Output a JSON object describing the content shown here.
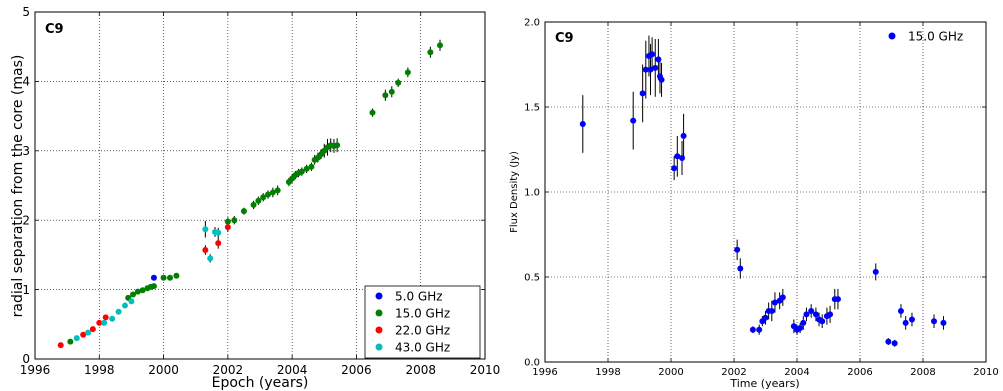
{
  "chart_data": [
    {
      "type": "scatter",
      "panel_label": "C9",
      "xlabel": "Epoch (years)",
      "ylabel": "radial separation from the core (mas)",
      "xlim": [
        1996,
        2010
      ],
      "ylim": [
        0,
        5
      ],
      "xticks": [
        "1996",
        "1998",
        "2000",
        "2002",
        "2004",
        "2006",
        "2008",
        "2010"
      ],
      "yticks": [
        "0",
        "1",
        "2",
        "3",
        "4",
        "5"
      ],
      "grid": true,
      "legend_position": "bottom-right",
      "series": [
        {
          "name": "5.0 GHz",
          "color": "#0000ff",
          "points": [
            [
              1999.7,
              1.17,
              0.02
            ]
          ]
        },
        {
          "name": "15.0 GHz",
          "color": "#007f00",
          "points": [
            [
              1997.1,
              0.25,
              0.02
            ],
            [
              1998.9,
              0.88,
              0.03
            ],
            [
              1999.05,
              0.93,
              0.03
            ],
            [
              1999.2,
              0.97,
              0.03
            ],
            [
              1999.35,
              0.99,
              0.03
            ],
            [
              1999.5,
              1.02,
              0.03
            ],
            [
              1999.6,
              1.04,
              0.03
            ],
            [
              1999.7,
              1.05,
              0.03
            ],
            [
              2000.0,
              1.17,
              0.03
            ],
            [
              2000.2,
              1.17,
              0.03
            ],
            [
              2000.4,
              1.2,
              0.04
            ],
            [
              2002.0,
              1.98,
              0.06
            ],
            [
              2002.2,
              2.0,
              0.06
            ],
            [
              2002.5,
              2.13,
              0.05
            ],
            [
              2002.8,
              2.22,
              0.06
            ],
            [
              2002.95,
              2.28,
              0.06
            ],
            [
              2003.1,
              2.33,
              0.06
            ],
            [
              2003.25,
              2.37,
              0.06
            ],
            [
              2003.4,
              2.4,
              0.07
            ],
            [
              2003.55,
              2.43,
              0.07
            ],
            [
              2003.9,
              2.55,
              0.06
            ],
            [
              2004.0,
              2.6,
              0.06
            ],
            [
              2004.1,
              2.65,
              0.06
            ],
            [
              2004.2,
              2.68,
              0.06
            ],
            [
              2004.3,
              2.7,
              0.06
            ],
            [
              2004.45,
              2.74,
              0.06
            ],
            [
              2004.6,
              2.77,
              0.06
            ],
            [
              2004.7,
              2.87,
              0.07
            ],
            [
              2004.8,
              2.9,
              0.07
            ],
            [
              2004.9,
              2.95,
              0.07
            ],
            [
              2005.0,
              3.0,
              0.1
            ],
            [
              2005.1,
              3.05,
              0.12
            ],
            [
              2005.2,
              3.08,
              0.1
            ],
            [
              2005.3,
              3.07,
              0.1
            ],
            [
              2005.4,
              3.08,
              0.1
            ],
            [
              2006.5,
              3.55,
              0.06
            ],
            [
              2006.9,
              3.8,
              0.08
            ],
            [
              2007.1,
              3.85,
              0.08
            ],
            [
              2007.3,
              3.98,
              0.06
            ],
            [
              2007.6,
              4.13,
              0.07
            ],
            [
              2008.3,
              4.42,
              0.08
            ],
            [
              2008.6,
              4.52,
              0.08
            ]
          ]
        },
        {
          "name": "22.0 GHz",
          "color": "#ff0000",
          "points": [
            [
              1996.8,
              0.2,
              0.02
            ],
            [
              1997.5,
              0.35,
              0.02
            ],
            [
              1997.8,
              0.43,
              0.02
            ],
            [
              1998.0,
              0.52,
              0.02
            ],
            [
              1998.2,
              0.6,
              0.02
            ],
            [
              2001.3,
              1.57,
              0.07
            ],
            [
              2001.7,
              1.67,
              0.08
            ],
            [
              2002.0,
              1.9,
              0.07
            ]
          ]
        },
        {
          "name": "43.0 GHz",
          "color": "#00bfbf",
          "points": [
            [
              1997.3,
              0.3,
              0.02
            ],
            [
              1997.65,
              0.38,
              0.02
            ],
            [
              1998.15,
              0.52,
              0.02
            ],
            [
              1998.4,
              0.58,
              0.02
            ],
            [
              1998.6,
              0.68,
              0.02
            ],
            [
              1998.8,
              0.77,
              0.02
            ],
            [
              1999.0,
              0.83,
              0.02
            ],
            [
              2001.3,
              1.87,
              0.12
            ],
            [
              2001.45,
              1.45,
              0.06
            ],
            [
              2001.6,
              1.83,
              0.07
            ],
            [
              2001.7,
              1.82,
              0.07
            ]
          ]
        }
      ]
    },
    {
      "type": "scatter",
      "panel_label": "C9",
      "xlabel": "Time (years)",
      "ylabel": "Flux Density (Jy)",
      "xlim": [
        1996,
        2010
      ],
      "ylim": [
        0,
        2
      ],
      "xticks": [
        "1996",
        "1998",
        "2000",
        "2002",
        "2004",
        "2006",
        "2008",
        "2010"
      ],
      "yticks": [
        "0.0",
        "0.5",
        "1.0",
        "1.5",
        "2.0"
      ],
      "grid": true,
      "legend_position": "top-right",
      "series": [
        {
          "name": "15.0 GHz",
          "color": "#0000ff",
          "points": [
            [
              1997.2,
              1.4,
              0.17
            ],
            [
              1998.8,
              1.42,
              0.17
            ],
            [
              1999.1,
              1.58,
              0.17
            ],
            [
              1999.2,
              1.72,
              0.17
            ],
            [
              1999.3,
              1.8,
              0.12
            ],
            [
              1999.35,
              1.72,
              0.15
            ],
            [
              1999.4,
              1.81,
              0.1
            ],
            [
              1999.5,
              1.73,
              0.17
            ],
            [
              1999.6,
              1.78,
              0.12
            ],
            [
              1999.65,
              1.68,
              0.1
            ],
            [
              1999.7,
              1.66,
              0.1
            ],
            [
              2000.1,
              1.14,
              0.07
            ],
            [
              2000.2,
              1.21,
              0.12
            ],
            [
              2000.35,
              1.2,
              0.1
            ],
            [
              2000.4,
              1.33,
              0.13
            ],
            [
              2002.1,
              0.66,
              0.06
            ],
            [
              2002.2,
              0.55,
              0.06
            ],
            [
              2002.6,
              0.19,
              0.02
            ],
            [
              2002.8,
              0.19,
              0.03
            ],
            [
              2002.9,
              0.24,
              0.03
            ],
            [
              2003.0,
              0.26,
              0.04
            ],
            [
              2003.1,
              0.3,
              0.05
            ],
            [
              2003.2,
              0.3,
              0.06
            ],
            [
              2003.3,
              0.35,
              0.06
            ],
            [
              2003.45,
              0.36,
              0.05
            ],
            [
              2003.55,
              0.38,
              0.05
            ],
            [
              2003.9,
              0.21,
              0.04
            ],
            [
              2004.0,
              0.19,
              0.03
            ],
            [
              2004.1,
              0.2,
              0.03
            ],
            [
              2004.2,
              0.23,
              0.04
            ],
            [
              2004.3,
              0.28,
              0.04
            ],
            [
              2004.45,
              0.3,
              0.04
            ],
            [
              2004.6,
              0.28,
              0.04
            ],
            [
              2004.7,
              0.25,
              0.04
            ],
            [
              2004.8,
              0.24,
              0.04
            ],
            [
              2004.95,
              0.27,
              0.05
            ],
            [
              2005.05,
              0.28,
              0.05
            ],
            [
              2005.2,
              0.37,
              0.06
            ],
            [
              2005.3,
              0.37,
              0.06
            ],
            [
              2006.5,
              0.53,
              0.05
            ],
            [
              2006.9,
              0.12,
              0.02
            ],
            [
              2007.1,
              0.11,
              0.02
            ],
            [
              2007.3,
              0.3,
              0.04
            ],
            [
              2007.45,
              0.23,
              0.04
            ],
            [
              2007.65,
              0.25,
              0.04
            ],
            [
              2008.35,
              0.24,
              0.04
            ],
            [
              2008.65,
              0.23,
              0.04
            ]
          ]
        }
      ]
    }
  ]
}
